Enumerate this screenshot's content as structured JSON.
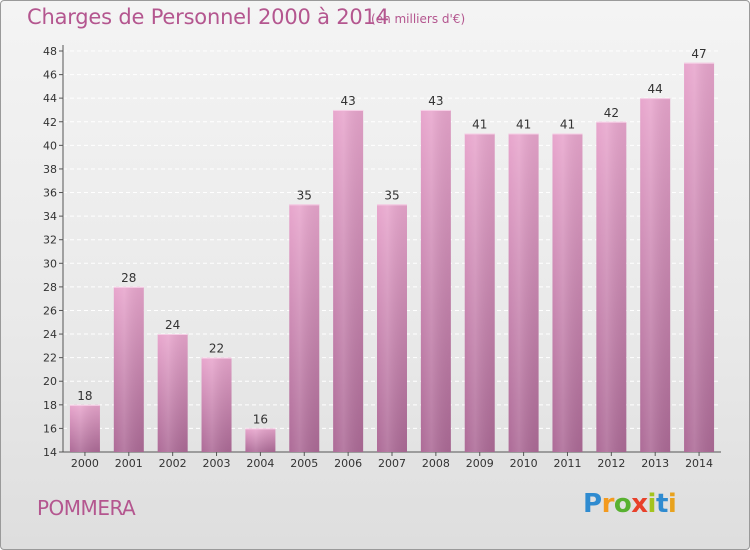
{
  "title": "Charges de Personnel 2000 à 2014",
  "unit_note": "(en milliers d'€)",
  "town": "POMMERA",
  "logo": {
    "text": "Proxiti",
    "letters": [
      "P",
      "r",
      "o",
      "x",
      "i",
      "t",
      "i"
    ]
  },
  "colors": {
    "title": "#b4568f",
    "bar_top": "#e8a6cd",
    "bar_bottom": "#ad6b97",
    "grid": "#ffffff"
  },
  "chart_data": {
    "type": "bar",
    "title": "Charges de Personnel 2000 à 2014",
    "categories": [
      "2000",
      "2001",
      "2002",
      "2003",
      "2004",
      "2005",
      "2006",
      "2007",
      "2008",
      "2009",
      "2010",
      "2011",
      "2012",
      "2013",
      "2014"
    ],
    "values": [
      18,
      28,
      24,
      22,
      16,
      35,
      43,
      35,
      43,
      41,
      41,
      41,
      42,
      44,
      47
    ],
    "ylim": [
      14,
      48
    ],
    "yticks": [
      14,
      16,
      18,
      20,
      22,
      24,
      26,
      28,
      30,
      32,
      34,
      36,
      38,
      40,
      42,
      44,
      46,
      48
    ],
    "grid": true,
    "xlabel": "",
    "ylabel": ""
  }
}
